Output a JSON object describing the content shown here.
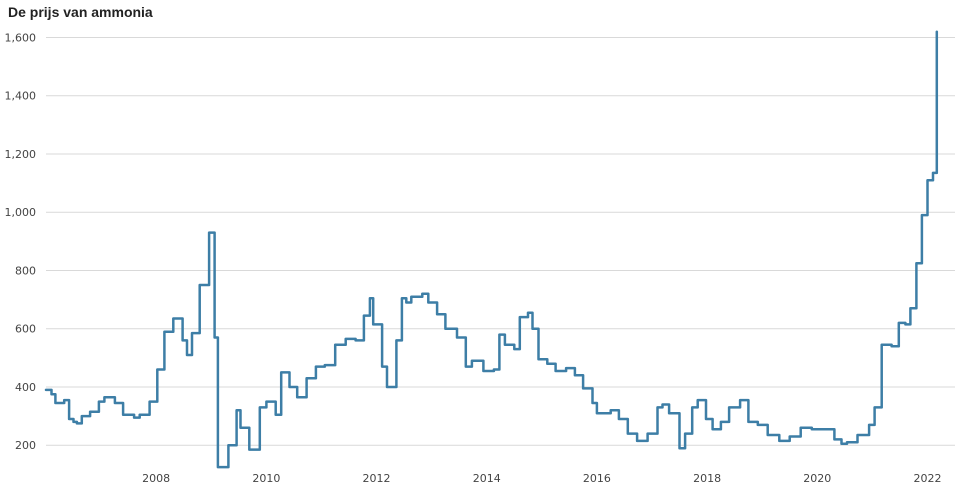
{
  "chart_data": {
    "type": "line",
    "title": "De prijs van ammonia",
    "xlabel": "",
    "ylabel": "",
    "x_ticks": [
      "2008",
      "2010",
      "2012",
      "2014",
      "2016",
      "2018",
      "2020",
      "2022"
    ],
    "y_ticks": [
      "200",
      "400",
      "600",
      "800",
      "1,000",
      "1,200",
      "1,400",
      "1,600"
    ],
    "xlim": [
      2006.0,
      2022.5
    ],
    "ylim": [
      115,
      1660
    ],
    "grid": "horizontal",
    "line_color": "#3d7ea6",
    "series": [
      {
        "x": [
          2006.0,
          2006.1,
          2006.17,
          2006.33,
          2006.42,
          2006.5,
          2006.56,
          2006.65,
          2006.8,
          2006.96,
          2007.06,
          2007.25,
          2007.4,
          2007.6,
          2007.7,
          2007.88,
          2008.02,
          2008.15,
          2008.31,
          2008.48,
          2008.56,
          2008.65,
          2008.79,
          2008.96,
          2009.06,
          2009.12,
          2009.31,
          2009.46,
          2009.53,
          2009.69,
          2009.88,
          2010.0,
          2010.17,
          2010.27,
          2010.42,
          2010.56,
          2010.73,
          2010.9,
          2011.06,
          2011.25,
          2011.44,
          2011.62,
          2011.77,
          2011.88,
          2011.94,
          2012.1,
          2012.19,
          2012.36,
          2012.46,
          2012.54,
          2012.63,
          2012.83,
          2012.94,
          2013.1,
          2013.25,
          2013.46,
          2013.62,
          2013.73,
          2013.94,
          2014.13,
          2014.23,
          2014.33,
          2014.5,
          2014.6,
          2014.75,
          2014.83,
          2014.94,
          2015.1,
          2015.25,
          2015.44,
          2015.6,
          2015.75,
          2015.92,
          2016.0,
          2016.1,
          2016.25,
          2016.4,
          2016.56,
          2016.73,
          2016.92,
          2017.1,
          2017.19,
          2017.31,
          2017.5,
          2017.6,
          2017.73,
          2017.83,
          2017.98,
          2018.1,
          2018.25,
          2018.4,
          2018.6,
          2018.75,
          2018.92,
          2019.1,
          2019.31,
          2019.5,
          2019.7,
          2019.9,
          2020.04,
          2020.31,
          2020.44,
          2020.54,
          2020.73,
          2020.94,
          2021.04,
          2021.17,
          2021.35,
          2021.48,
          2021.6,
          2021.69,
          2021.8,
          2021.9,
          2022.0,
          2022.1,
          2022.15,
          2022.17
        ],
        "y": [
          390,
          375,
          345,
          355,
          290,
          280,
          275,
          300,
          315,
          350,
          365,
          345,
          305,
          295,
          305,
          350,
          460,
          590,
          635,
          560,
          510,
          585,
          750,
          930,
          570,
          125,
          200,
          320,
          260,
          185,
          330,
          350,
          305,
          450,
          400,
          365,
          430,
          470,
          475,
          545,
          565,
          560,
          645,
          705,
          615,
          470,
          400,
          560,
          705,
          690,
          710,
          720,
          690,
          650,
          600,
          570,
          470,
          490,
          455,
          460,
          580,
          545,
          530,
          640,
          655,
          600,
          495,
          480,
          455,
          465,
          440,
          395,
          345,
          310,
          310,
          320,
          290,
          240,
          215,
          240,
          330,
          340,
          310,
          190,
          240,
          330,
          355,
          290,
          255,
          280,
          330,
          355,
          280,
          270,
          235,
          215,
          230,
          260,
          255,
          255,
          220,
          205,
          210,
          235,
          270,
          330,
          545,
          540,
          620,
          615,
          670,
          825,
          990,
          1110,
          1135,
          1135,
          1620
        ]
      }
    ]
  }
}
